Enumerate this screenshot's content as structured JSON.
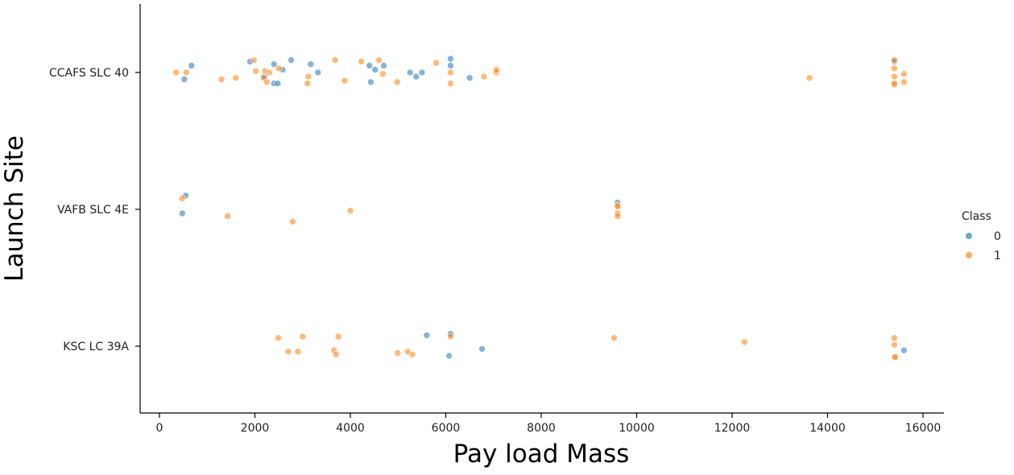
{
  "chart_data": {
    "type": "scatter",
    "title": "",
    "xlabel": "Pay load Mass",
    "ylabel": "Launch Site",
    "xlim": [
      -400,
      16400
    ],
    "x_ticks": [
      0,
      2000,
      4000,
      6000,
      8000,
      10000,
      12000,
      14000,
      16000
    ],
    "categories": [
      "CCAFS SLC 40",
      "VAFB SLC 4E",
      "KSC LC 39A"
    ],
    "grid": false,
    "legend": {
      "title": "Class",
      "placement": "right",
      "entries": [
        {
          "label": "0",
          "color": "#1f77b4"
        },
        {
          "label": "1",
          "color": "#ff7f0e"
        }
      ]
    },
    "series": [
      {
        "name": "0",
        "color": "#1f77b4",
        "points": [
          {
            "x": 520,
            "y": "CCAFS SLC 40",
            "jitter": 0.05
          },
          {
            "x": 670,
            "y": "CCAFS SLC 40",
            "jitter": -0.05
          },
          {
            "x": 1900,
            "y": "CCAFS SLC 40",
            "jitter": -0.08
          },
          {
            "x": 2400,
            "y": "CCAFS SLC 40",
            "jitter": -0.06
          },
          {
            "x": 2200,
            "y": "CCAFS SLC 40",
            "jitter": 0.03
          },
          {
            "x": 2580,
            "y": "CCAFS SLC 40",
            "jitter": -0.02
          },
          {
            "x": 2400,
            "y": "CCAFS SLC 40",
            "jitter": 0.08
          },
          {
            "x": 2480,
            "y": "CCAFS SLC 40",
            "jitter": 0.08
          },
          {
            "x": 2760,
            "y": "CCAFS SLC 40",
            "jitter": -0.09
          },
          {
            "x": 3170,
            "y": "CCAFS SLC 40",
            "jitter": -0.06
          },
          {
            "x": 3320,
            "y": "CCAFS SLC 40",
            "jitter": 0.0
          },
          {
            "x": 4400,
            "y": "CCAFS SLC 40",
            "jitter": -0.05
          },
          {
            "x": 4520,
            "y": "CCAFS SLC 40",
            "jitter": -0.02
          },
          {
            "x": 4430,
            "y": "CCAFS SLC 40",
            "jitter": 0.07
          },
          {
            "x": 4700,
            "y": "CCAFS SLC 40",
            "jitter": -0.05
          },
          {
            "x": 5250,
            "y": "CCAFS SLC 40",
            "jitter": 0.0
          },
          {
            "x": 5380,
            "y": "CCAFS SLC 40",
            "jitter": 0.03
          },
          {
            "x": 5500,
            "y": "CCAFS SLC 40",
            "jitter": 0.0
          },
          {
            "x": 6100,
            "y": "CCAFS SLC 40",
            "jitter": -0.1
          },
          {
            "x": 6100,
            "y": "CCAFS SLC 40",
            "jitter": -0.05
          },
          {
            "x": 6500,
            "y": "CCAFS SLC 40",
            "jitter": 0.04
          },
          {
            "x": 15400,
            "y": "CCAFS SLC 40",
            "jitter": -0.08
          },
          {
            "x": 550,
            "y": "VAFB SLC 4E",
            "jitter": -0.1
          },
          {
            "x": 480,
            "y": "VAFB SLC 4E",
            "jitter": 0.03
          },
          {
            "x": 9600,
            "y": "VAFB SLC 4E",
            "jitter": -0.05
          },
          {
            "x": 5600,
            "y": "KSC LC 39A",
            "jitter": -0.08
          },
          {
            "x": 6100,
            "y": "KSC LC 39A",
            "jitter": -0.09
          },
          {
            "x": 6070,
            "y": "KSC LC 39A",
            "jitter": 0.07
          },
          {
            "x": 6760,
            "y": "KSC LC 39A",
            "jitter": 0.02
          },
          {
            "x": 15600,
            "y": "KSC LC 39A",
            "jitter": 0.03
          }
        ]
      },
      {
        "name": "1",
        "color": "#ff7f0e",
        "points": [
          {
            "x": 350,
            "y": "CCAFS SLC 40",
            "jitter": 0.0
          },
          {
            "x": 560,
            "y": "CCAFS SLC 40",
            "jitter": 0.0
          },
          {
            "x": 1300,
            "y": "CCAFS SLC 40",
            "jitter": 0.05
          },
          {
            "x": 1600,
            "y": "CCAFS SLC 40",
            "jitter": 0.04
          },
          {
            "x": 1980,
            "y": "CCAFS SLC 40",
            "jitter": -0.09
          },
          {
            "x": 2020,
            "y": "CCAFS SLC 40",
            "jitter": -0.01
          },
          {
            "x": 2180,
            "y": "CCAFS SLC 40",
            "jitter": 0.04
          },
          {
            "x": 2210,
            "y": "CCAFS SLC 40",
            "jitter": -0.01
          },
          {
            "x": 2250,
            "y": "CCAFS SLC 40",
            "jitter": 0.07
          },
          {
            "x": 2300,
            "y": "CCAFS SLC 40",
            "jitter": 0.0
          },
          {
            "x": 2500,
            "y": "CCAFS SLC 40",
            "jitter": -0.03
          },
          {
            "x": 3100,
            "y": "CCAFS SLC 40",
            "jitter": 0.08
          },
          {
            "x": 3120,
            "y": "CCAFS SLC 40",
            "jitter": 0.03
          },
          {
            "x": 3680,
            "y": "CCAFS SLC 40",
            "jitter": -0.09
          },
          {
            "x": 3880,
            "y": "CCAFS SLC 40",
            "jitter": 0.06
          },
          {
            "x": 4230,
            "y": "CCAFS SLC 40",
            "jitter": -0.08
          },
          {
            "x": 4600,
            "y": "CCAFS SLC 40",
            "jitter": -0.09
          },
          {
            "x": 4680,
            "y": "CCAFS SLC 40",
            "jitter": 0.01
          },
          {
            "x": 4980,
            "y": "CCAFS SLC 40",
            "jitter": 0.07
          },
          {
            "x": 5800,
            "y": "CCAFS SLC 40",
            "jitter": -0.07
          },
          {
            "x": 6100,
            "y": "CCAFS SLC 40",
            "jitter": 0.0
          },
          {
            "x": 6100,
            "y": "CCAFS SLC 40",
            "jitter": 0.08
          },
          {
            "x": 6800,
            "y": "CCAFS SLC 40",
            "jitter": 0.03
          },
          {
            "x": 7060,
            "y": "CCAFS SLC 40",
            "jitter": 0.0
          },
          {
            "x": 7060,
            "y": "CCAFS SLC 40",
            "jitter": -0.02
          },
          {
            "x": 13620,
            "y": "CCAFS SLC 40",
            "jitter": 0.04
          },
          {
            "x": 15400,
            "y": "CCAFS SLC 40",
            "jitter": -0.09
          },
          {
            "x": 15400,
            "y": "CCAFS SLC 40",
            "jitter": -0.03
          },
          {
            "x": 15400,
            "y": "CCAFS SLC 40",
            "jitter": 0.03
          },
          {
            "x": 15400,
            "y": "CCAFS SLC 40",
            "jitter": 0.09
          },
          {
            "x": 15400,
            "y": "CCAFS SLC 40",
            "jitter": 0.08
          },
          {
            "x": 15600,
            "y": "CCAFS SLC 40",
            "jitter": 0.01
          },
          {
            "x": 15600,
            "y": "CCAFS SLC 40",
            "jitter": 0.07
          },
          {
            "x": 475,
            "y": "VAFB SLC 4E",
            "jitter": -0.08
          },
          {
            "x": 1425,
            "y": "VAFB SLC 4E",
            "jitter": 0.05
          },
          {
            "x": 2790,
            "y": "VAFB SLC 4E",
            "jitter": 0.09
          },
          {
            "x": 4000,
            "y": "VAFB SLC 4E",
            "jitter": 0.01
          },
          {
            "x": 9600,
            "y": "VAFB SLC 4E",
            "jitter": -0.03
          },
          {
            "x": 9600,
            "y": "VAFB SLC 4E",
            "jitter": -0.02
          },
          {
            "x": 9600,
            "y": "VAFB SLC 4E",
            "jitter": 0.03
          },
          {
            "x": 9600,
            "y": "VAFB SLC 4E",
            "jitter": 0.05
          },
          {
            "x": 2490,
            "y": "KSC LC 39A",
            "jitter": -0.06
          },
          {
            "x": 3000,
            "y": "KSC LC 39A",
            "jitter": -0.07
          },
          {
            "x": 3750,
            "y": "KSC LC 39A",
            "jitter": -0.07
          },
          {
            "x": 2700,
            "y": "KSC LC 39A",
            "jitter": 0.04
          },
          {
            "x": 2900,
            "y": "KSC LC 39A",
            "jitter": 0.04
          },
          {
            "x": 3660,
            "y": "KSC LC 39A",
            "jitter": 0.03
          },
          {
            "x": 3700,
            "y": "KSC LC 39A",
            "jitter": 0.06
          },
          {
            "x": 4990,
            "y": "KSC LC 39A",
            "jitter": 0.05
          },
          {
            "x": 5200,
            "y": "KSC LC 39A",
            "jitter": 0.04
          },
          {
            "x": 5300,
            "y": "KSC LC 39A",
            "jitter": 0.06
          },
          {
            "x": 6100,
            "y": "KSC LC 39A",
            "jitter": -0.07
          },
          {
            "x": 9525,
            "y": "KSC LC 39A",
            "jitter": -0.06
          },
          {
            "x": 12260,
            "y": "KSC LC 39A",
            "jitter": -0.03
          },
          {
            "x": 15400,
            "y": "KSC LC 39A",
            "jitter": -0.06
          },
          {
            "x": 15400,
            "y": "KSC LC 39A",
            "jitter": -0.01
          },
          {
            "x": 15400,
            "y": "KSC LC 39A",
            "jitter": 0.08
          },
          {
            "x": 15420,
            "y": "KSC LC 39A",
            "jitter": 0.08
          }
        ]
      }
    ]
  }
}
